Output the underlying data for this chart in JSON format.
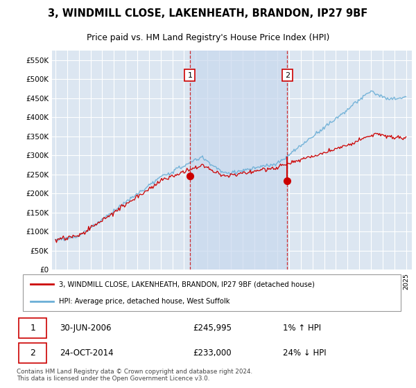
{
  "title": "3, WINDMILL CLOSE, LAKENHEATH, BRANDON, IP27 9BF",
  "subtitle": "Price paid vs. HM Land Registry's House Price Index (HPI)",
  "ylim": [
    0,
    575000
  ],
  "yticks": [
    0,
    50000,
    100000,
    150000,
    200000,
    250000,
    300000,
    350000,
    400000,
    450000,
    500000,
    550000
  ],
  "ytick_labels": [
    "£0",
    "£50K",
    "£100K",
    "£150K",
    "£200K",
    "£250K",
    "£300K",
    "£350K",
    "£400K",
    "£450K",
    "£500K",
    "£550K"
  ],
  "background_color": "#ffffff",
  "plot_bg_color": "#dce6f1",
  "shade_color": "#c8d8ee",
  "grid_color": "#ffffff",
  "hpi_color": "#6aaed6",
  "price_color": "#cc0000",
  "marker1_date": 2006.5,
  "marker2_date": 2014.83,
  "marker1_price": 245995,
  "marker2_price": 233000,
  "legend_line1": "3, WINDMILL CLOSE, LAKENHEATH, BRANDON, IP27 9BF (detached house)",
  "legend_line2": "HPI: Average price, detached house, West Suffolk",
  "table_row1": [
    "1",
    "30-JUN-2006",
    "£245,995",
    "1% ↑ HPI"
  ],
  "table_row2": [
    "2",
    "24-OCT-2014",
    "£233,000",
    "24% ↓ HPI"
  ],
  "footnote": "Contains HM Land Registry data © Crown copyright and database right 2024.\nThis data is licensed under the Open Government Licence v3.0.",
  "xmin": 1994.7,
  "xmax": 2025.5
}
